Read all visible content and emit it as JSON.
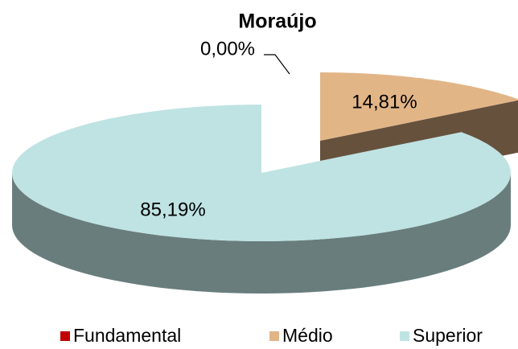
{
  "chart_data": {
    "type": "pie3d",
    "title": "Moraújo",
    "categories": [
      "Fundamental",
      "Médio",
      "Superior"
    ],
    "values": [
      0,
      14.81,
      85.19
    ],
    "value_labels": [
      "0,00%",
      "14,81%",
      "85,19%"
    ],
    "colors": [
      "#c00000",
      "#e2b587",
      "#bfe3e3"
    ],
    "legend": "bottom"
  }
}
